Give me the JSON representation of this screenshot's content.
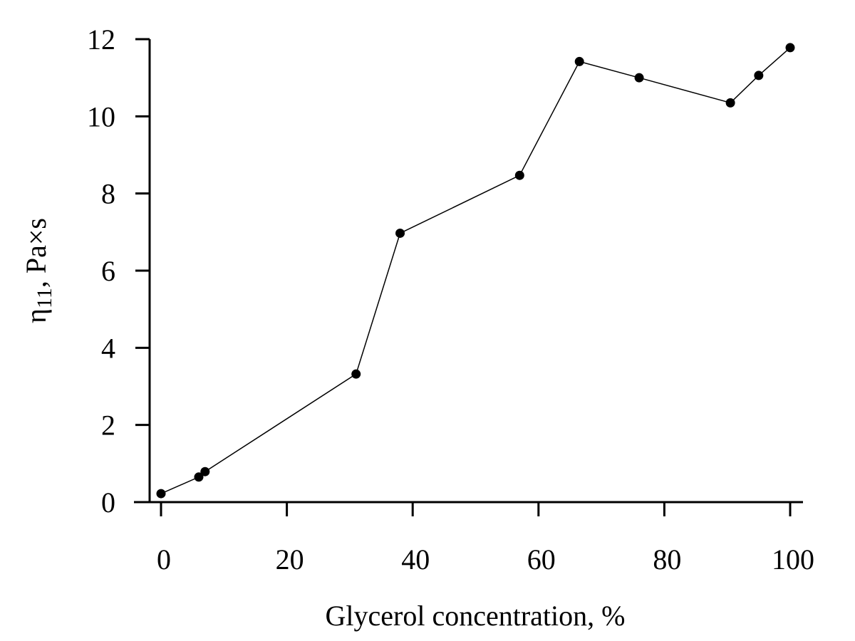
{
  "chart_data": {
    "type": "line",
    "xlabel": "Glycerol concentration, %",
    "ylabel_main": "η",
    "ylabel_sub": "11",
    "ylabel_rest": ", Pa×s",
    "xlim": [
      -2,
      102
    ],
    "ylim": [
      0,
      12
    ],
    "xticks": [
      0,
      20,
      40,
      60,
      80,
      100
    ],
    "yticks": [
      0,
      2,
      4,
      6,
      8,
      10,
      12
    ],
    "xtick_labels": [
      "0",
      "20",
      "40",
      "60",
      "80",
      "100"
    ],
    "ytick_labels": [
      "0",
      "2",
      "4",
      "6",
      "8",
      "10",
      "12"
    ],
    "grid": false,
    "series": [
      {
        "x": [
          0,
          6,
          7,
          31,
          38,
          57,
          66.5,
          76,
          90.5,
          95,
          100
        ],
        "y": [
          0.22,
          0.65,
          0.79,
          3.32,
          6.97,
          8.47,
          11.42,
          11.0,
          10.35,
          11.06,
          11.78
        ]
      }
    ]
  }
}
